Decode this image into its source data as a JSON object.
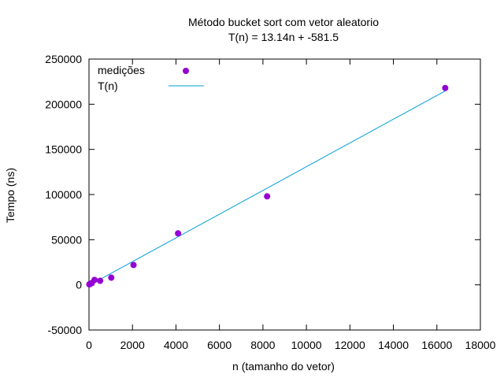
{
  "chart_data": {
    "type": "scatter",
    "title": "Método bucket sort com vetor aleatorio",
    "subtitle": "T(n) = 13.14n + -581.5",
    "xlabel": "n (tamanho do vetor)",
    "ylabel": "Tempo (ns)",
    "xlim": [
      0,
      18000
    ],
    "ylim": [
      -50000,
      250000
    ],
    "x_ticks": [
      0,
      2000,
      4000,
      6000,
      8000,
      10000,
      12000,
      14000,
      16000,
      18000
    ],
    "y_ticks": [
      -50000,
      0,
      50000,
      100000,
      150000,
      200000,
      250000
    ],
    "grid": false,
    "legend_position": "top-left",
    "series": [
      {
        "name": "medições",
        "kind": "points",
        "color": "#9400d3",
        "x": [
          16,
          32,
          64,
          128,
          256,
          512,
          1024,
          2048,
          4096,
          8192,
          16384
        ],
        "y": [
          500,
          800,
          1200,
          2000,
          5500,
          4500,
          8000,
          22000,
          57000,
          98000,
          218000
        ]
      },
      {
        "name": "T(n)",
        "kind": "line",
        "color": "#009ed8",
        "slope": 13.14,
        "intercept": -581.5,
        "x_range": [
          16,
          16384
        ]
      }
    ]
  }
}
